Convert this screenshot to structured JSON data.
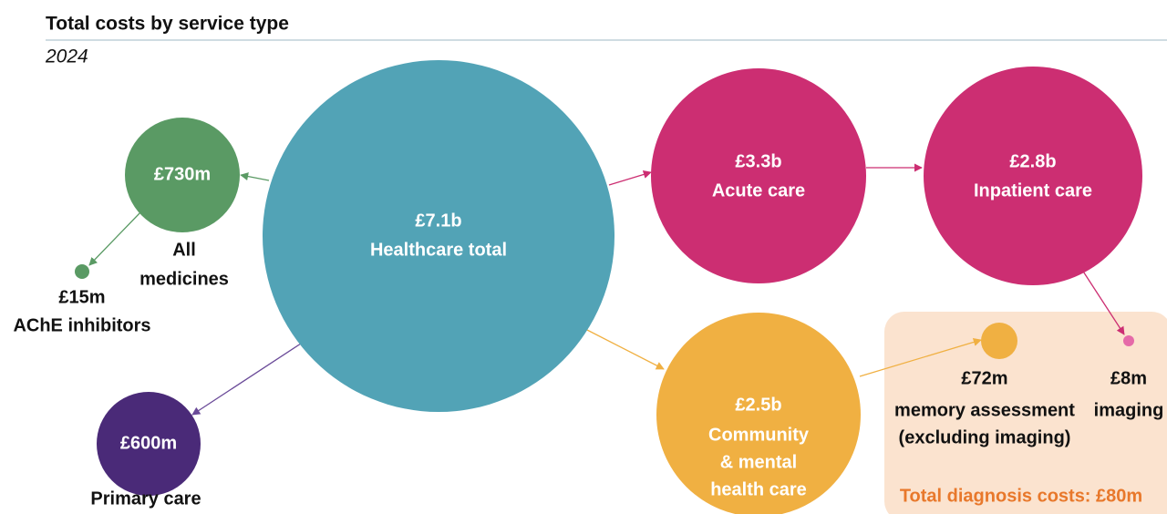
{
  "header": {
    "title": "Total costs by service type",
    "subtitle": "2024"
  },
  "nodes": [
    {
      "value": "£7.1b",
      "name": [
        "Healthcare total"
      ]
    },
    {
      "value": "£730m",
      "name": [
        "All",
        "medicines"
      ]
    },
    {
      "value": "£15m",
      "name": [
        "AChE inhibitors"
      ]
    },
    {
      "value": "£600m",
      "name": [
        "Primary care"
      ]
    },
    {
      "value": "£3.3b",
      "name": [
        "Acute care"
      ]
    },
    {
      "value": "£2.8b",
      "name": [
        "Inpatient care"
      ]
    },
    {
      "value": "£2.5b",
      "name": [
        "Community",
        "& mental",
        "health care"
      ]
    },
    {
      "value": "£72m",
      "name": [
        "memory assessment",
        "(excluding imaging)"
      ]
    },
    {
      "value": "£8m",
      "name": [
        "imaging"
      ]
    }
  ],
  "panel": {
    "label": "Total diagnosis costs: £80m"
  }
}
